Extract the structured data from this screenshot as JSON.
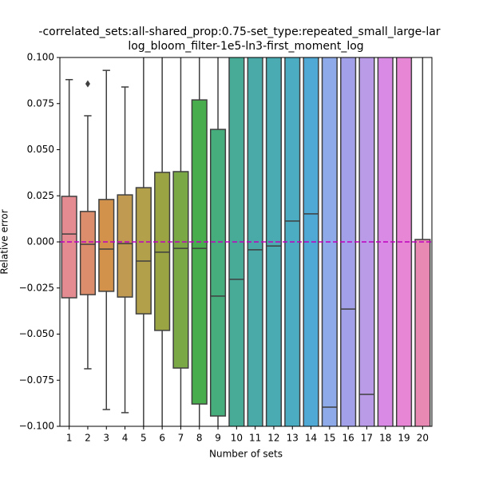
{
  "chart_data": {
    "type": "box",
    "title": [
      "-correlated_sets:all-shared_prop:0.75-set_type:repeated_small_large-lar",
      "log_bloom_filter-1e5-ln3-first_moment_log"
    ],
    "x_label": "Number of sets",
    "y_label": "Relative error",
    "categories": [
      "1",
      "2",
      "3",
      "4",
      "5",
      "6",
      "7",
      "8",
      "9",
      "10",
      "11",
      "12",
      "13",
      "14",
      "15",
      "16",
      "17",
      "18",
      "19",
      "20"
    ],
    "colors": [
      "#e48b91",
      "#dc8d6c",
      "#d3924b",
      "#c09a50",
      "#b3a04a",
      "#9aa443",
      "#7aa844",
      "#48ad4c",
      "#46ae7c",
      "#48ab98",
      "#49aaa7",
      "#4aacb2",
      "#4cacc1",
      "#4fa9d4",
      "#8faae8",
      "#a2a0e9",
      "#b99be8",
      "#d88ae4",
      "#e686d4",
      "#e889b3"
    ],
    "boxes": [
      {
        "whislo": null,
        "q1": -0.0303,
        "median": 0.0043,
        "q3": 0.0247,
        "whishi": 0.088,
        "fliers": []
      },
      {
        "whislo": -0.0688,
        "q1": -0.0286,
        "median": -0.0013,
        "q3": 0.0165,
        "whishi": 0.0684,
        "fliers": [
          0.0857
        ]
      },
      {
        "whislo": -0.0909,
        "q1": -0.0268,
        "median": -0.0039,
        "q3": 0.023,
        "whishi": 0.093,
        "fliers": []
      },
      {
        "whislo": -0.0926,
        "q1": -0.0299,
        "median": -0.0009,
        "q3": 0.0255,
        "whishi": 0.084,
        "fliers": []
      },
      {
        "whislo": null,
        "q1": -0.039,
        "median": -0.0104,
        "q3": 0.0294,
        "whishi": null,
        "fliers": []
      },
      {
        "whislo": null,
        "q1": -0.048,
        "median": -0.0056,
        "q3": 0.0377,
        "whishi": null,
        "fliers": []
      },
      {
        "whislo": null,
        "q1": -0.0684,
        "median": -0.0035,
        "q3": 0.0381,
        "whishi": null,
        "fliers": []
      },
      {
        "whislo": null,
        "q1": -0.0879,
        "median": -0.0035,
        "q3": 0.077,
        "whishi": null,
        "fliers": []
      },
      {
        "whislo": null,
        "q1": -0.0944,
        "median": -0.0294,
        "q3": 0.061,
        "whishi": null,
        "fliers": []
      },
      {
        "whislo": null,
        "q1": null,
        "median": -0.0203,
        "q3": null,
        "whishi": null,
        "fliers": []
      },
      {
        "whislo": null,
        "q1": null,
        "median": -0.0043,
        "q3": null,
        "whishi": null,
        "fliers": []
      },
      {
        "whislo": null,
        "q1": null,
        "median": -0.0022,
        "q3": null,
        "whishi": null,
        "fliers": []
      },
      {
        "whislo": null,
        "q1": null,
        "median": 0.0113,
        "q3": null,
        "whishi": null,
        "fliers": []
      },
      {
        "whislo": null,
        "q1": null,
        "median": 0.0152,
        "q3": null,
        "whishi": null,
        "fliers": []
      },
      {
        "whislo": null,
        "q1": null,
        "median": -0.0896,
        "q3": null,
        "whishi": null,
        "fliers": []
      },
      {
        "whislo": null,
        "q1": null,
        "median": -0.0364,
        "q3": null,
        "whishi": null,
        "fliers": []
      },
      {
        "whislo": null,
        "q1": null,
        "median": -0.0827,
        "q3": null,
        "whishi": null,
        "fliers": []
      },
      {
        "whislo": null,
        "q1": null,
        "median": null,
        "q3": null,
        "whishi": null,
        "fliers": []
      },
      {
        "whislo": null,
        "q1": null,
        "median": null,
        "q3": null,
        "whishi": null,
        "fliers": []
      },
      {
        "whislo": null,
        "q1": null,
        "median": null,
        "q3": 0.0013,
        "whishi": null,
        "fliers": []
      }
    ],
    "ylim": [
      -0.1,
      0.1
    ],
    "yticks": [
      {
        "value": -0.1,
        "label": "−0.100"
      },
      {
        "value": -0.075,
        "label": "−0.075"
      },
      {
        "value": -0.05,
        "label": "−0.050"
      },
      {
        "value": -0.025,
        "label": "−0.025"
      },
      {
        "value": 0,
        "label": "0.000"
      },
      {
        "value": 0.025,
        "label": "0.025"
      },
      {
        "value": 0.05,
        "label": "0.050"
      },
      {
        "value": 0.075,
        "label": "0.075"
      },
      {
        "value": 0.1,
        "label": "0.100"
      }
    ],
    "reference_line": {
      "value": 0,
      "color": "#bf00bf"
    }
  }
}
